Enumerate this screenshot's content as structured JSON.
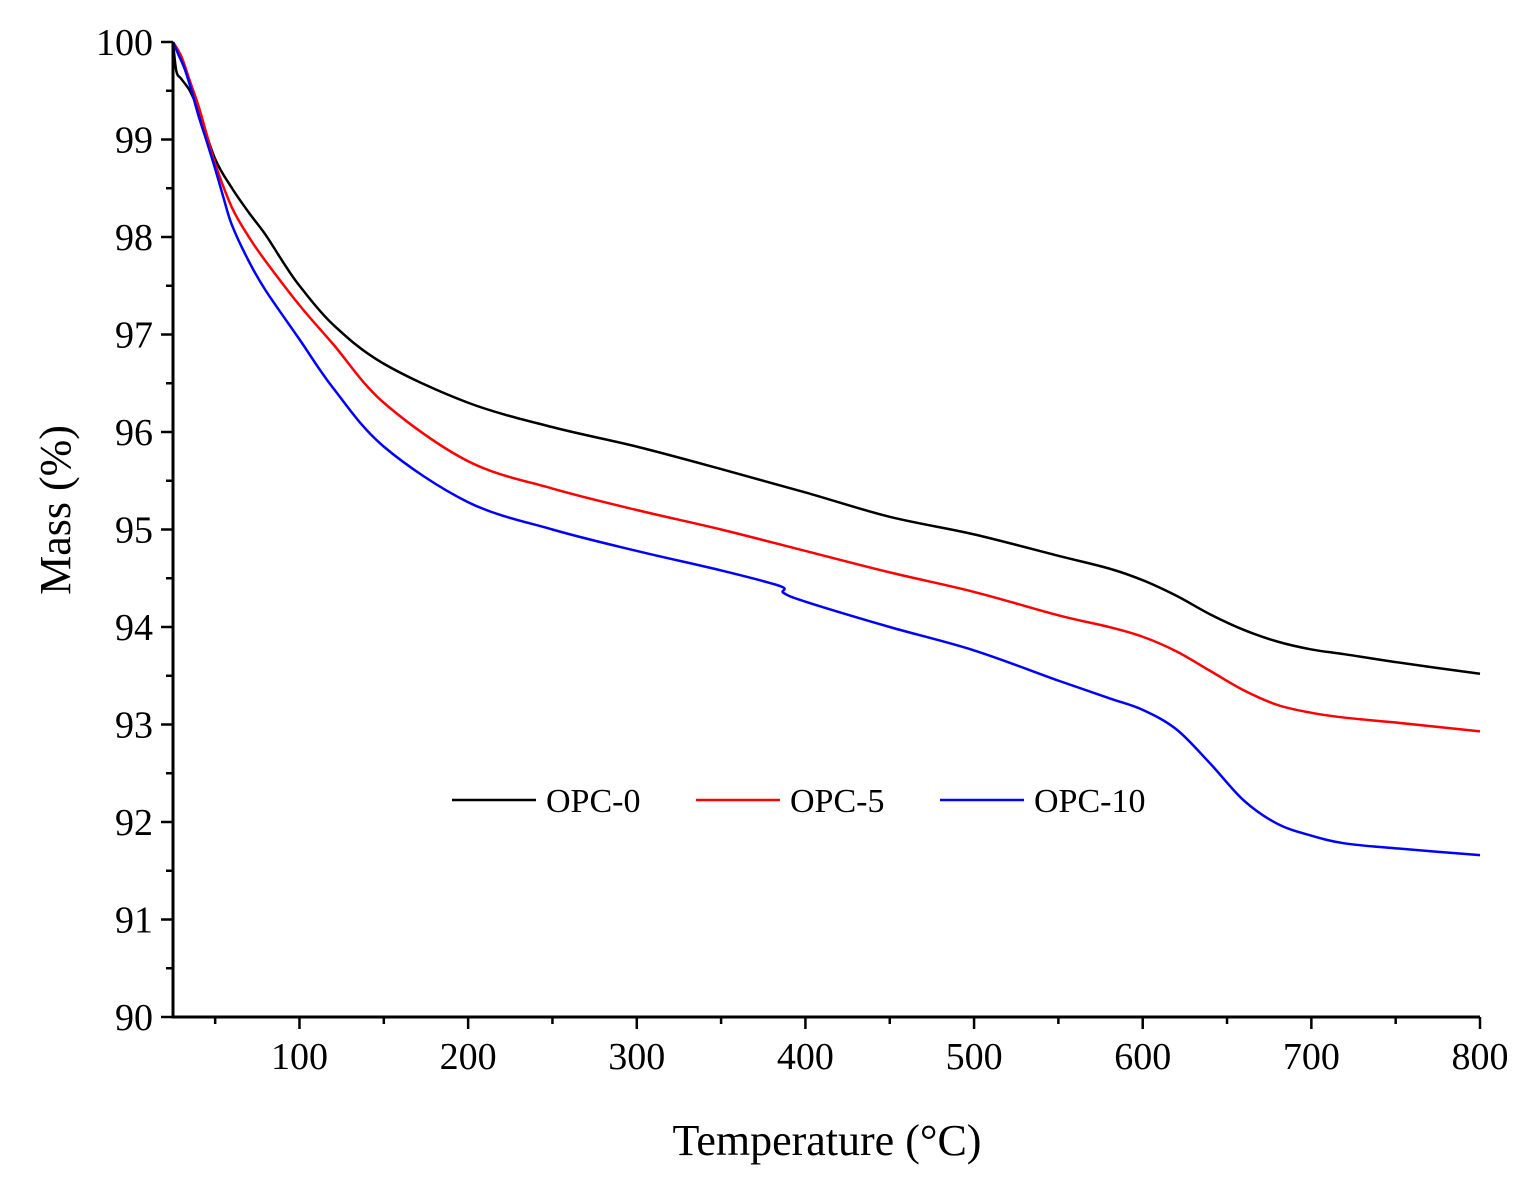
{
  "chart_data": {
    "type": "line",
    "xlabel": "Temperature (°C)",
    "ylabel": "Mass (%)",
    "xlim": [
      25,
      800
    ],
    "ylim": [
      90,
      100
    ],
    "xticks": [
      100,
      200,
      300,
      400,
      500,
      600,
      700,
      800
    ],
    "xtick_labels": [
      "100",
      "200",
      "300",
      "400",
      "500",
      "600",
      "700",
      "800"
    ],
    "yticks": [
      90,
      91,
      92,
      93,
      94,
      95,
      96,
      97,
      98,
      99,
      100
    ],
    "ytick_labels": [
      "90",
      "91",
      "92",
      "93",
      "94",
      "95",
      "96",
      "97",
      "98",
      "99",
      "100"
    ],
    "grid": false,
    "legend_position": "center-right, inside plot",
    "series": [
      {
        "name": "OPC-0",
        "color": "#000000",
        "x": [
          25,
          27,
          30,
          35,
          40,
          50,
          60,
          70,
          80,
          90,
          100,
          120,
          150,
          200,
          250,
          300,
          350,
          400,
          450,
          500,
          550,
          580,
          600,
          620,
          640,
          660,
          680,
          700,
          720,
          750,
          800
        ],
        "y": [
          100,
          99.7,
          99.62,
          99.5,
          99.3,
          98.8,
          98.5,
          98.25,
          98.02,
          97.75,
          97.5,
          97.1,
          96.7,
          96.3,
          96.05,
          95.85,
          95.62,
          95.38,
          95.13,
          94.95,
          94.73,
          94.6,
          94.48,
          94.32,
          94.13,
          93.97,
          93.85,
          93.77,
          93.72,
          93.64,
          93.52
        ]
      },
      {
        "name": "OPC-5",
        "color": "#ff0000",
        "x": [
          25,
          30,
          35,
          40,
          45,
          50,
          60,
          70,
          80,
          100,
          120,
          150,
          200,
          250,
          300,
          350,
          400,
          450,
          500,
          550,
          580,
          600,
          620,
          640,
          660,
          680,
          700,
          720,
          750,
          800
        ],
        "y": [
          100,
          99.85,
          99.6,
          99.35,
          99.05,
          98.75,
          98.3,
          98.0,
          97.75,
          97.3,
          96.9,
          96.3,
          95.7,
          95.42,
          95.2,
          95.0,
          94.78,
          94.56,
          94.36,
          94.12,
          94.0,
          93.9,
          93.75,
          93.55,
          93.35,
          93.2,
          93.12,
          93.07,
          93.02,
          92.93
        ]
      },
      {
        "name": "OPC-10",
        "color": "#0000ff",
        "x": [
          25,
          28,
          32,
          36,
          40,
          45,
          50,
          55,
          60,
          70,
          80,
          100,
          120,
          150,
          200,
          250,
          300,
          350,
          385,
          387,
          400,
          450,
          500,
          550,
          580,
          600,
          620,
          640,
          660,
          680,
          700,
          720,
          750,
          800
        ],
        "y": [
          100,
          99.88,
          99.72,
          99.5,
          99.25,
          98.98,
          98.7,
          98.4,
          98.12,
          97.75,
          97.45,
          96.95,
          96.45,
          95.85,
          95.28,
          95.0,
          94.78,
          94.58,
          94.42,
          94.35,
          94.26,
          94.0,
          93.76,
          93.45,
          93.27,
          93.15,
          92.95,
          92.6,
          92.22,
          91.98,
          91.86,
          91.78,
          91.73,
          91.66
        ]
      }
    ]
  }
}
